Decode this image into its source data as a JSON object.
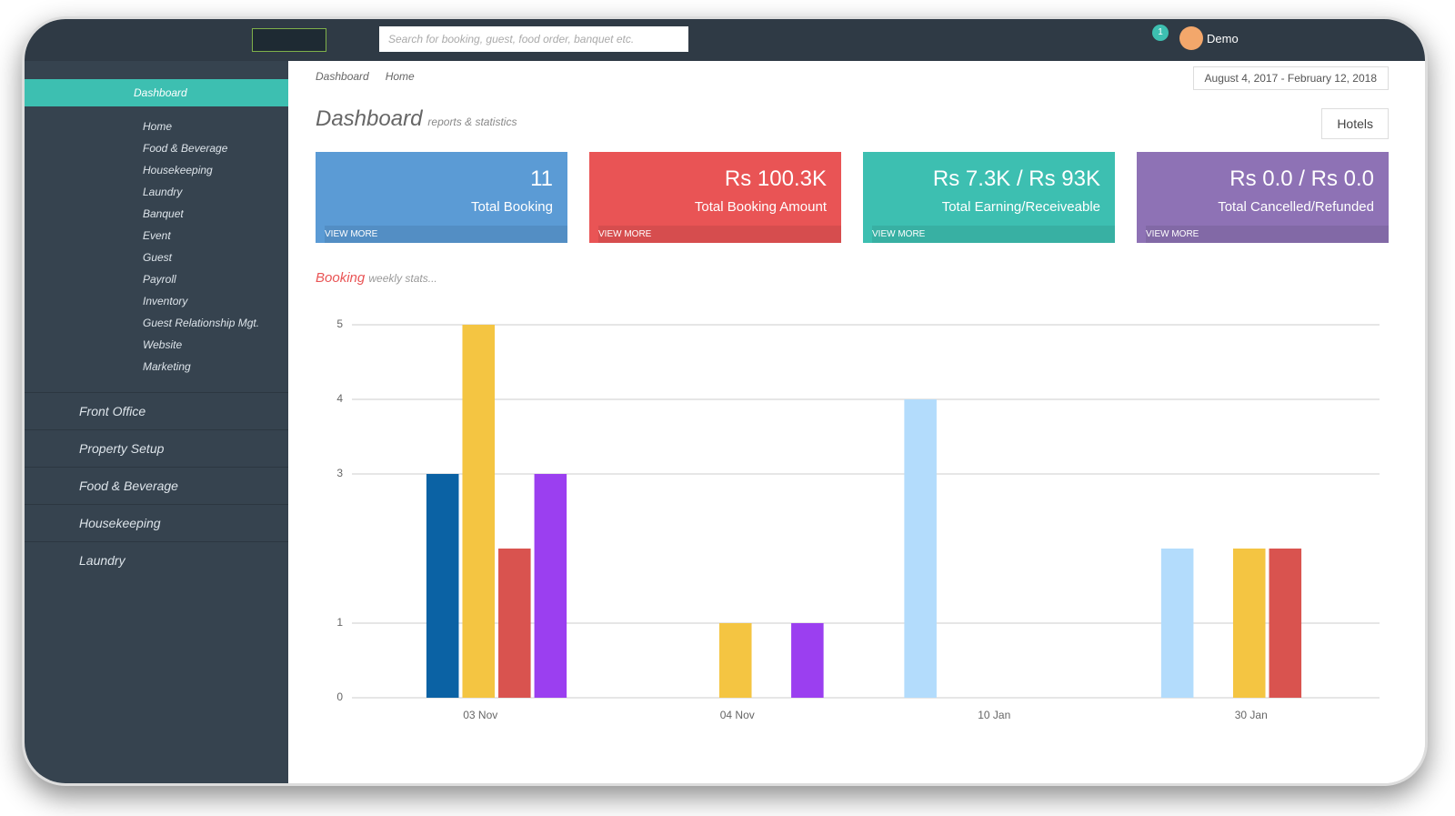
{
  "header": {
    "search_placeholder": "Search for booking, guest, food order, banquet etc.",
    "notification_count": "1",
    "user": "Demo"
  },
  "sidebar": {
    "active": "Dashboard",
    "sub_items": [
      "Home",
      "Food & Beverage",
      "Housekeeping",
      "Laundry",
      "Banquet",
      "Event",
      "Guest",
      "Payroll",
      "Inventory",
      "Guest Relationship Mgt.",
      "Website",
      "Marketing"
    ],
    "sections": [
      "Front Office",
      "Property Setup",
      "Food & Beverage",
      "Housekeeping",
      "Laundry"
    ]
  },
  "breadcrumb": [
    "Dashboard",
    "Home"
  ],
  "date_range": "August 4, 2017 - February 12, 2018",
  "page": {
    "title": "Dashboard",
    "subtitle": "reports & statistics",
    "button": "Hotels"
  },
  "cards": [
    {
      "value": "11",
      "label": "Total Booking",
      "link": "VIEW MORE",
      "color": "#5b9bd5"
    },
    {
      "value": "Rs 100.3K",
      "label": "Total Booking Amount",
      "link": "VIEW MORE",
      "color": "#e95455"
    },
    {
      "value": "Rs 7.3K / Rs 93K",
      "label": "Total Earning/Receiveable",
      "link": "VIEW MORE",
      "color": "#3dbfb1"
    },
    {
      "value": "Rs 0.0 / Rs 0.0",
      "label": "Total Cancelled/Refunded",
      "link": "VIEW MORE",
      "color": "#8e72b5"
    }
  ],
  "chart_data": {
    "type": "bar",
    "title": "Booking",
    "subtitle": "weekly stats...",
    "categories": [
      "03 Nov",
      "04 Nov",
      "10 Jan",
      "30 Jan"
    ],
    "series": [
      {
        "color": "#b3dcfc",
        "values": [
          null,
          null,
          4,
          2
        ]
      },
      {
        "color": "#0b62a4",
        "values": [
          3,
          null,
          null,
          null
        ]
      },
      {
        "color": "#f4c542",
        "values": [
          5,
          1,
          null,
          2
        ]
      },
      {
        "color": "#d9534f",
        "values": [
          2,
          null,
          null,
          2
        ]
      },
      {
        "color": "#9b3ff0",
        "values": [
          3,
          1,
          null,
          null
        ]
      }
    ],
    "ylim": [
      0,
      5
    ],
    "yticks": [
      0,
      1,
      3,
      4,
      5
    ],
    "grid": true
  }
}
